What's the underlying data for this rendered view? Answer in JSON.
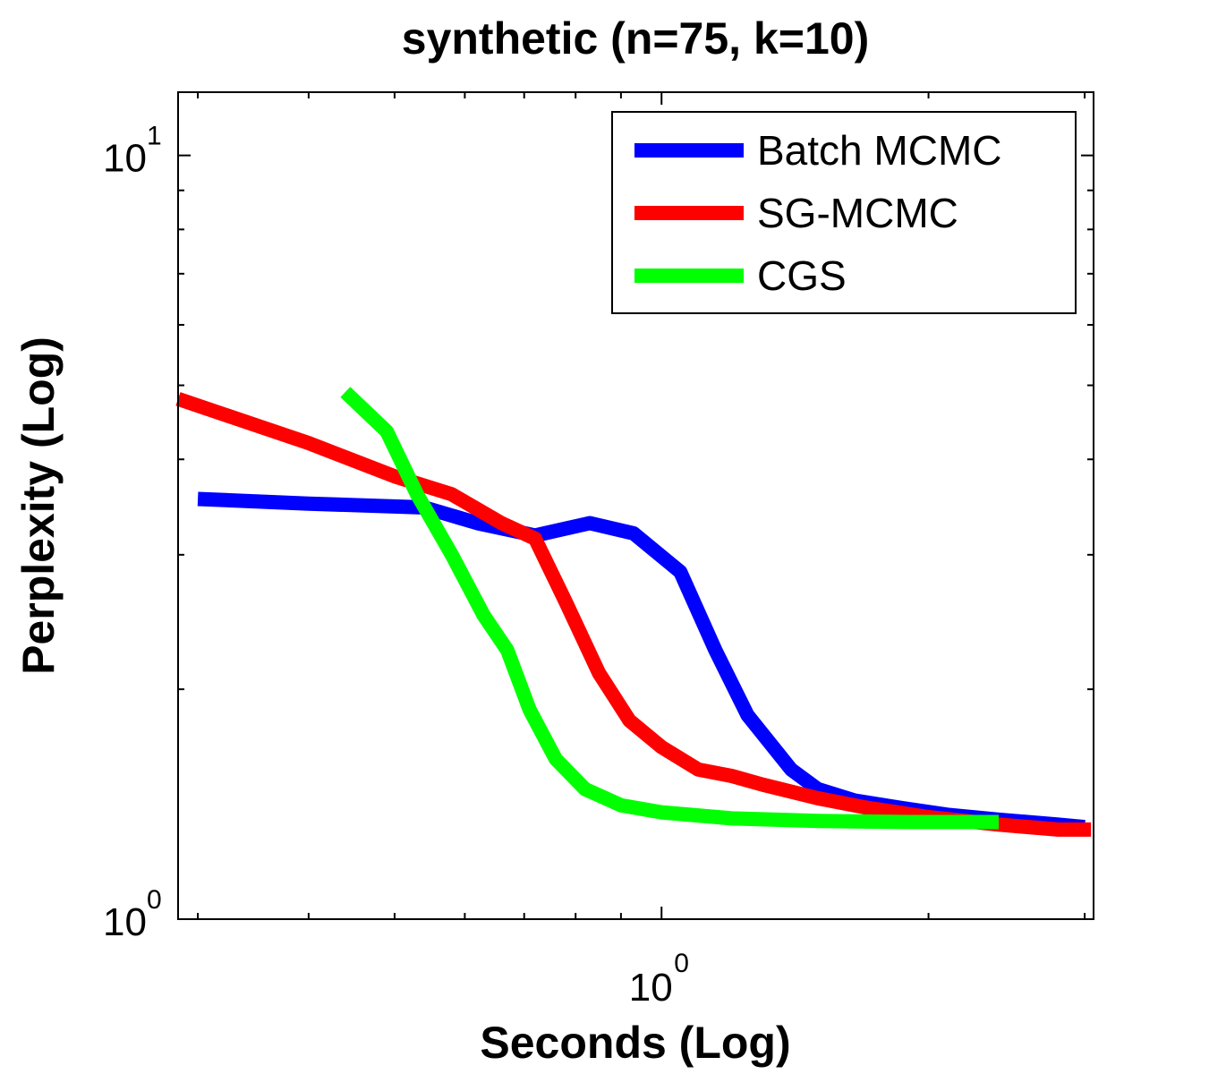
{
  "chart_data": {
    "type": "line",
    "title": "synthetic (n=75, k=10)",
    "xlabel": "Seconds (Log)",
    "ylabel": "Perplexity (Log)",
    "xscale": "log",
    "yscale": "log",
    "xlim": [
      0.285,
      3.07
    ],
    "ylim": [
      1.0,
      12.1
    ],
    "xticks": [
      {
        "base": "10",
        "exp": "0",
        "value": 1
      }
    ],
    "yticks": [
      {
        "base": "10",
        "exp": "0",
        "value": 1
      },
      {
        "base": "10",
        "exp": "1",
        "value": 10
      }
    ],
    "grid": false,
    "legend_position": "top-right",
    "series": [
      {
        "name": "Batch MCMC",
        "color": "#0000ff",
        "x": [
          0.3,
          0.4,
          0.54,
          0.62,
          0.72,
          0.83,
          0.93,
          1.05,
          1.15,
          1.25,
          1.4,
          1.5,
          1.65,
          1.85,
          2.1,
          2.4,
          2.8,
          3.0
        ],
        "y": [
          3.55,
          3.5,
          3.46,
          3.3,
          3.18,
          3.3,
          3.2,
          2.85,
          2.25,
          1.85,
          1.57,
          1.48,
          1.43,
          1.4,
          1.37,
          1.35,
          1.33,
          1.32
        ]
      },
      {
        "name": "SG-MCMC",
        "color": "#ff0000",
        "x": [
          0.285,
          0.4,
          0.5,
          0.58,
          0.66,
          0.72,
          0.78,
          0.85,
          0.92,
          1.0,
          1.1,
          1.2,
          1.3,
          1.5,
          1.7,
          2.0,
          2.4,
          2.8,
          3.05
        ],
        "y": [
          4.8,
          4.2,
          3.8,
          3.6,
          3.3,
          3.15,
          2.6,
          2.1,
          1.82,
          1.68,
          1.57,
          1.54,
          1.5,
          1.44,
          1.4,
          1.36,
          1.33,
          1.31,
          1.31
        ]
      },
      {
        "name": "CGS",
        "color": "#00ff00",
        "x": [
          0.44,
          0.49,
          0.53,
          0.58,
          0.63,
          0.67,
          0.71,
          0.76,
          0.82,
          0.9,
          1.0,
          1.2,
          1.5,
          1.9,
          2.4
        ],
        "y": [
          4.9,
          4.35,
          3.6,
          3.0,
          2.5,
          2.25,
          1.88,
          1.62,
          1.48,
          1.41,
          1.38,
          1.355,
          1.345,
          1.34,
          1.34
        ]
      }
    ]
  }
}
